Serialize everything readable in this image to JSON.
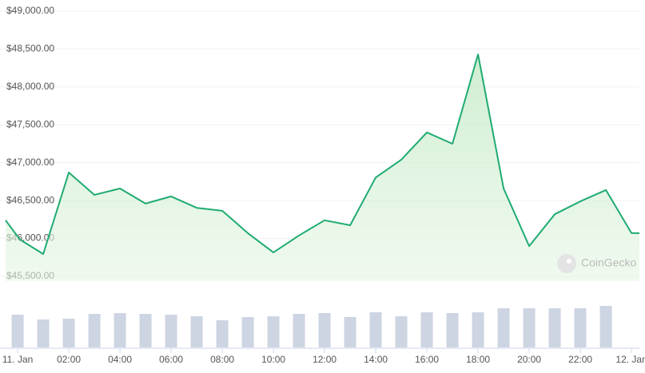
{
  "chart_data": {
    "type": "line",
    "watermark": "CoinGecko",
    "ylim": [
      45500,
      49000
    ],
    "yticks": [
      {
        "value": 49000,
        "label": "$49,000.00"
      },
      {
        "value": 48500,
        "label": "$48,500.00"
      },
      {
        "value": 48000,
        "label": "$48,000.00"
      },
      {
        "value": 47500,
        "label": "$47,500.00"
      },
      {
        "value": 47000,
        "label": "$47,000.00"
      },
      {
        "value": 46500,
        "label": "$46,500.00"
      },
      {
        "value": 46000,
        "label": "$46,000.00"
      },
      {
        "value": 45500,
        "label": "$45,500.00"
      }
    ],
    "xlim": [
      -0.69,
      24.31
    ],
    "xticks": [
      {
        "value": 0,
        "label": "11. Jan"
      },
      {
        "value": 2,
        "label": "02:00"
      },
      {
        "value": 4,
        "label": "04:00"
      },
      {
        "value": 6,
        "label": "06:00"
      },
      {
        "value": 8,
        "label": "08:00"
      },
      {
        "value": 10,
        "label": "10:00"
      },
      {
        "value": 12,
        "label": "12:00"
      },
      {
        "value": 14,
        "label": "14:00"
      },
      {
        "value": 16,
        "label": "16:00"
      },
      {
        "value": 18,
        "label": "18:00"
      },
      {
        "value": 20,
        "label": "20:00"
      },
      {
        "value": 22,
        "label": "22:00"
      },
      {
        "value": 24,
        "label": "12. Jan"
      }
    ],
    "grid": true,
    "x": [
      -0.47,
      0.09,
      1,
      2,
      3,
      4,
      5,
      6,
      7,
      8,
      9,
      10,
      11,
      12,
      13,
      14,
      15,
      16,
      17,
      18,
      19,
      20,
      21,
      22,
      23,
      24,
      24.31
    ],
    "series": [
      {
        "color": "#1fab72",
        "values": [
          46240,
          45985,
          45795,
          46870,
          46575,
          46660,
          46460,
          46555,
          46405,
          46365,
          46070,
          45815,
          46040,
          46240,
          46175,
          46805,
          47040,
          47400,
          47250,
          48430,
          46660,
          45900,
          46320,
          46490,
          46640,
          46070,
          46070
        ]
      }
    ],
    "volume": {
      "color": "#cdd4e2",
      "y2lim": [
        0,
        60
      ],
      "x": [
        0,
        1,
        2,
        3,
        4,
        5,
        6,
        7,
        8,
        9,
        10,
        11,
        12,
        13,
        14,
        15,
        16,
        17,
        18,
        19,
        20,
        21,
        22,
        23
      ],
      "values": [
        41,
        35,
        36,
        42,
        43,
        42,
        41,
        39,
        34,
        38,
        39,
        42,
        43,
        38,
        44,
        39,
        44,
        43,
        44,
        49,
        49,
        49,
        49,
        52
      ]
    }
  }
}
